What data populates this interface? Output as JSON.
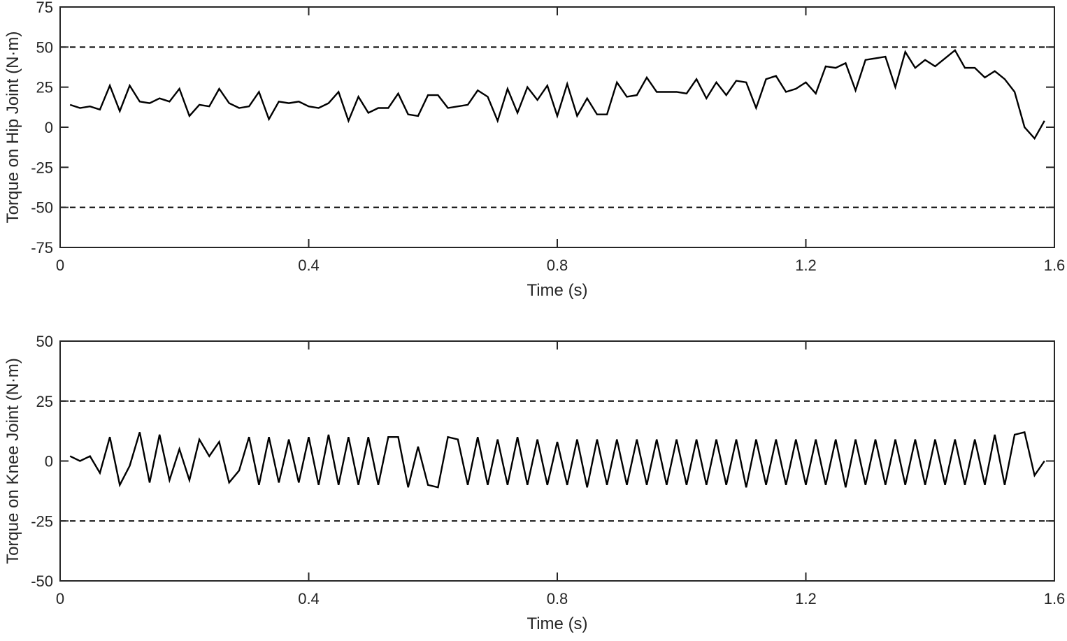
{
  "chart_data": [
    {
      "type": "line",
      "xlabel": "Time (s)",
      "ylabel": "Torque on Hip Joint (N·m)",
      "xlim": [
        0,
        1.6
      ],
      "ylim": [
        -75,
        75
      ],
      "x_ticks": [
        "0",
        "0.4",
        "0.8",
        "1.2",
        "1.6"
      ],
      "y_ticks": [
        "75",
        "50",
        "25",
        "0",
        "-25",
        "-50",
        "-75"
      ],
      "x_tick_values": [
        0,
        0.4,
        0.8,
        1.2,
        1.6
      ],
      "y_tick_values": [
        75,
        50,
        25,
        0,
        -25,
        -50,
        -75
      ],
      "limit_lines": [
        50,
        -50
      ],
      "line_color": "#000000",
      "grid": false,
      "series": [
        {
          "x": [
            0.016,
            0.032,
            0.048,
            0.064,
            0.08,
            0.096,
            0.112,
            0.128,
            0.144,
            0.16,
            0.176,
            0.192,
            0.208,
            0.224,
            0.24,
            0.256,
            0.272,
            0.288,
            0.304,
            0.32,
            0.336,
            0.352,
            0.368,
            0.384,
            0.4,
            0.416,
            0.432,
            0.448,
            0.464,
            0.48,
            0.496,
            0.512,
            0.528,
            0.544,
            0.56,
            0.576,
            0.592,
            0.608,
            0.624,
            0.64,
            0.656,
            0.672,
            0.688,
            0.704,
            0.72,
            0.736,
            0.752,
            0.768,
            0.784,
            0.8,
            0.816,
            0.832,
            0.848,
            0.864,
            0.88,
            0.896,
            0.912,
            0.928,
            0.944,
            0.96,
            0.976,
            0.992,
            1.008,
            1.024,
            1.04,
            1.056,
            1.072,
            1.088,
            1.104,
            1.12,
            1.136,
            1.152,
            1.168,
            1.184,
            1.2,
            1.216,
            1.232,
            1.248,
            1.264,
            1.28,
            1.296,
            1.312,
            1.328,
            1.344,
            1.36,
            1.376,
            1.392,
            1.408,
            1.424,
            1.44,
            1.456,
            1.472,
            1.488,
            1.504,
            1.52,
            1.536,
            1.552,
            1.568,
            1.584
          ],
          "y": [
            14,
            12,
            13,
            11,
            26,
            10,
            26,
            16,
            15,
            18,
            16,
            24,
            7,
            14,
            13,
            24,
            15,
            12,
            13,
            22,
            5,
            16,
            15,
            16,
            13,
            12,
            15,
            22,
            4,
            19,
            9,
            12,
            12,
            21,
            8,
            7,
            20,
            20,
            12,
            13,
            14,
            23,
            19,
            4,
            24,
            9,
            25,
            17,
            26,
            7,
            27,
            7,
            18,
            8,
            8,
            28,
            19,
            20,
            31,
            22,
            22,
            22,
            21,
            30,
            18,
            28,
            20,
            29,
            28,
            12,
            30,
            32,
            22,
            24,
            28,
            21,
            38,
            37,
            40,
            23,
            42,
            43,
            44,
            25,
            47,
            37,
            42,
            38,
            43,
            48,
            37,
            37,
            31,
            35,
            30,
            22,
            0,
            -7,
            4
          ]
        }
      ]
    },
    {
      "type": "line",
      "xlabel": "Time (s)",
      "ylabel": "Torque on Knee Joint (N·m)",
      "xlim": [
        0,
        1.6
      ],
      "ylim": [
        -50,
        50
      ],
      "x_ticks": [
        "0",
        "0.4",
        "0.8",
        "1.2",
        "1.6"
      ],
      "y_ticks": [
        "50",
        "25",
        "0",
        "-25",
        "-50"
      ],
      "x_tick_values": [
        0,
        0.4,
        0.8,
        1.2,
        1.6
      ],
      "y_tick_values": [
        50,
        25,
        0,
        -25,
        -50
      ],
      "limit_lines": [
        25,
        -25
      ],
      "line_color": "#000000",
      "grid": false,
      "series": [
        {
          "x": [
            0.016,
            0.032,
            0.048,
            0.064,
            0.08,
            0.096,
            0.112,
            0.128,
            0.144,
            0.16,
            0.176,
            0.192,
            0.208,
            0.224,
            0.24,
            0.256,
            0.272,
            0.288,
            0.304,
            0.32,
            0.336,
            0.352,
            0.368,
            0.384,
            0.4,
            0.416,
            0.432,
            0.448,
            0.464,
            0.48,
            0.496,
            0.512,
            0.528,
            0.544,
            0.56,
            0.576,
            0.592,
            0.608,
            0.624,
            0.64,
            0.656,
            0.672,
            0.688,
            0.704,
            0.72,
            0.736,
            0.752,
            0.768,
            0.784,
            0.8,
            0.816,
            0.832,
            0.848,
            0.864,
            0.88,
            0.896,
            0.912,
            0.928,
            0.944,
            0.96,
            0.976,
            0.992,
            1.008,
            1.024,
            1.04,
            1.056,
            1.072,
            1.088,
            1.104,
            1.12,
            1.136,
            1.152,
            1.168,
            1.184,
            1.2,
            1.216,
            1.232,
            1.248,
            1.264,
            1.28,
            1.296,
            1.312,
            1.328,
            1.344,
            1.36,
            1.376,
            1.392,
            1.408,
            1.424,
            1.44,
            1.456,
            1.472,
            1.488,
            1.504,
            1.52,
            1.536,
            1.552,
            1.568,
            1.584
          ],
          "y": [
            2,
            0,
            2,
            -5,
            10,
            -10,
            -2,
            12,
            -9,
            11,
            -8,
            5,
            -8,
            9,
            2,
            8,
            -9,
            -4,
            10,
            -10,
            10,
            -9,
            9,
            -9,
            10,
            -10,
            11,
            -10,
            10,
            -10,
            10,
            -10,
            10,
            10,
            -11,
            6,
            -10,
            -11,
            10,
            9,
            -10,
            10,
            -10,
            9,
            -10,
            10,
            -10,
            9,
            -10,
            8,
            -10,
            9,
            -11,
            9,
            -10,
            9,
            -10,
            9,
            -10,
            9,
            -10,
            9,
            -10,
            9,
            -10,
            9,
            -10,
            9,
            -11,
            9,
            -10,
            9,
            -10,
            9,
            -10,
            9,
            -10,
            9,
            -11,
            9,
            -10,
            9,
            -10,
            9,
            -10,
            9,
            -10,
            9,
            -10,
            9,
            -10,
            9,
            -10,
            11,
            -10,
            11,
            12,
            -6,
            0
          ]
        }
      ]
    }
  ]
}
